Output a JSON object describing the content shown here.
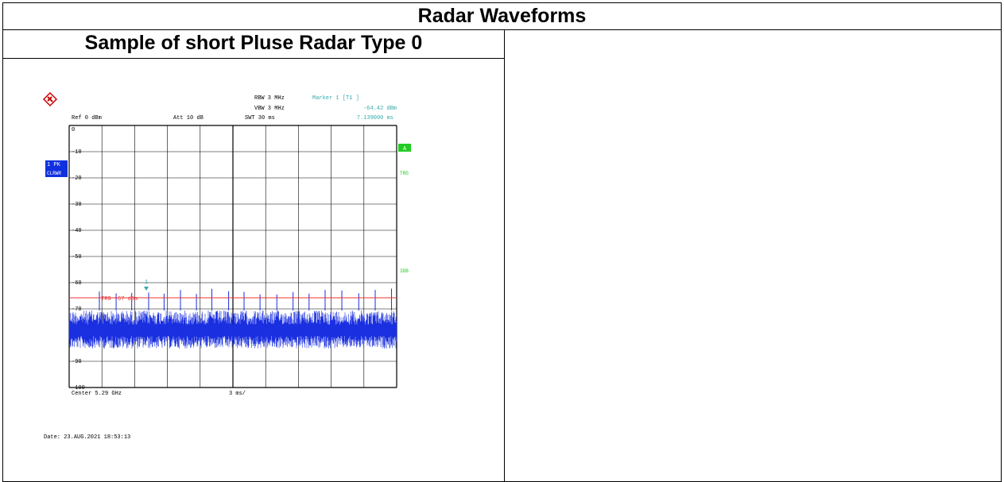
{
  "header": {
    "title": "Radar Waveforms"
  },
  "table": {
    "rows": [
      [
        "Sample of short Pluse Radar Type 0",
        ""
      ]
    ]
  },
  "screenshot": {
    "rbw": "RBW 3 MHz",
    "vbw": "VBW 3 MHz",
    "swt": "SWT 30 ms",
    "marker": "Marker 1 [T1 ]",
    "marker_level": "-64.42 dBm",
    "marker_time": "7.139000 ms",
    "ref": "Ref 0 dBm",
    "att": "Att 10 dB",
    "trace_label": "1 PK",
    "trace_mode": "CLRWR",
    "side_labels": [
      "A",
      "TRG",
      "3DB"
    ],
    "y_labels": [
      "0",
      "-10",
      "-20",
      "-30",
      "-40",
      "-50",
      "-60",
      "-70",
      "-80",
      "-90",
      "-100"
    ],
    "trigger": "TRG -67 dBm",
    "marker_id": "1",
    "center": "Center 5.29 GHz",
    "span": "3 ms/",
    "date": "Date: 23.AUG.2021 18:53:13"
  }
}
